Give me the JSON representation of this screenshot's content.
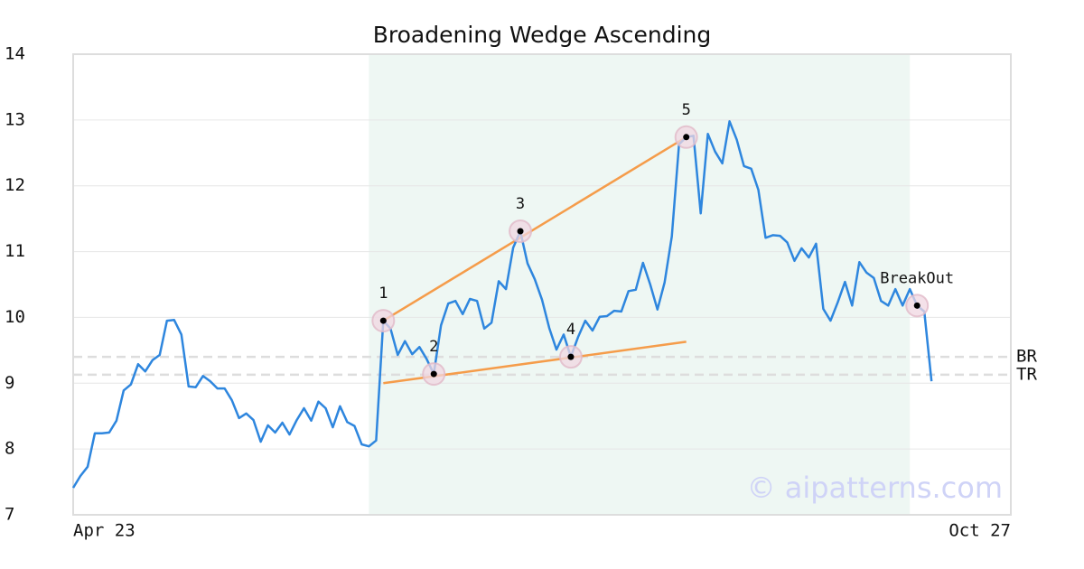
{
  "chart_data": {
    "type": "line",
    "title": "Broadening Wedge Ascending",
    "watermark": "© aipatterns.com",
    "categories": [
      "Apr 23",
      null,
      null,
      null,
      null,
      null,
      null,
      null,
      null,
      null,
      null,
      null,
      null,
      null,
      null,
      null,
      null,
      null,
      null,
      null,
      null,
      null,
      null,
      null,
      null,
      null,
      null,
      null,
      null,
      null,
      null,
      null,
      null,
      null,
      null,
      null,
      null,
      null,
      null,
      null,
      null,
      null,
      null,
      null,
      null,
      null,
      null,
      null,
      null,
      null,
      null,
      null,
      null,
      null,
      null,
      null,
      null,
      null,
      null,
      null,
      null,
      null,
      null,
      null,
      null,
      null,
      null,
      null,
      null,
      null,
      null,
      null,
      null,
      null,
      null,
      null,
      null,
      null,
      null,
      null,
      null,
      null,
      null,
      null,
      null,
      null,
      null,
      null,
      null,
      null,
      null,
      null,
      null,
      null,
      null,
      null,
      null,
      null,
      null,
      null,
      null,
      null,
      null,
      null,
      null,
      null,
      null,
      null,
      null,
      null,
      null,
      null,
      null,
      null,
      null,
      null,
      null,
      null,
      null,
      null,
      null,
      null,
      null,
      null,
      null,
      null,
      null,
      null,
      null,
      null,
      "Oct 27"
    ],
    "series": [
      {
        "name": "Price",
        "color": "#2e86de",
        "values": [
          7.41,
          7.59,
          7.73,
          8.24,
          8.24,
          8.25,
          8.43,
          8.89,
          8.98,
          9.29,
          9.18,
          9.35,
          9.43,
          9.95,
          9.96,
          9.74,
          8.95,
          8.94,
          9.11,
          9.03,
          8.92,
          8.92,
          8.74,
          8.47,
          8.54,
          8.44,
          8.11,
          8.36,
          8.25,
          8.4,
          8.22,
          8.44,
          8.62,
          8.43,
          8.72,
          8.62,
          8.33,
          8.65,
          8.41,
          8.35,
          8.07,
          8.04,
          8.13,
          9.95,
          9.83,
          9.43,
          9.64,
          9.44,
          9.55,
          9.37,
          9.14,
          9.88,
          10.21,
          10.25,
          10.05,
          10.28,
          10.25,
          9.83,
          9.92,
          10.55,
          10.43,
          11.06,
          11.31,
          10.82,
          10.58,
          10.27,
          9.84,
          9.51,
          9.74,
          9.4,
          9.7,
          9.95,
          9.8,
          10.01,
          10.02,
          10.1,
          10.09,
          10.4,
          10.42,
          10.83,
          10.5,
          10.12,
          10.53,
          11.23,
          12.63,
          12.74,
          12.76,
          11.58,
          12.79,
          12.52,
          12.34,
          12.98,
          12.7,
          12.3,
          12.26,
          11.94,
          11.21,
          11.25,
          11.24,
          11.14,
          10.86,
          11.05,
          10.91,
          11.12,
          10.13,
          9.95,
          10.23,
          10.54,
          10.18,
          10.84,
          10.68,
          10.6,
          10.25,
          10.18,
          10.43,
          10.18,
          10.43,
          10.18,
          10.09,
          9.03,
          null,
          null,
          null,
          null,
          null,
          null,
          null,
          null,
          null,
          null,
          null
        ]
      }
    ],
    "pattern_points": [
      {
        "label": "1",
        "index": 43
      },
      {
        "label": "2",
        "index": 50
      },
      {
        "label": "3",
        "index": 62
      },
      {
        "label": "4",
        "index": 69
      },
      {
        "label": "5",
        "index": 85
      },
      {
        "label": "BreakOut",
        "index": 117
      }
    ],
    "trend_lines": [
      {
        "color": "#f59c4a",
        "points": [
          [
            43,
            9.95
          ],
          [
            85,
            12.74
          ]
        ]
      },
      {
        "color": "#f59c4a",
        "points": [
          [
            43,
            9.0
          ],
          [
            85,
            9.63
          ]
        ]
      }
    ],
    "levels": [
      {
        "label": "BR",
        "value": 9.4
      },
      {
        "label": "TR",
        "value": 9.13
      }
    ],
    "highlight_range": [
      41,
      116
    ],
    "highlight_color": "#eef7f3",
    "ylim": [
      7,
      14
    ],
    "yticks": [
      7,
      8,
      9,
      10,
      11,
      12,
      13,
      14
    ],
    "grid": true
  }
}
